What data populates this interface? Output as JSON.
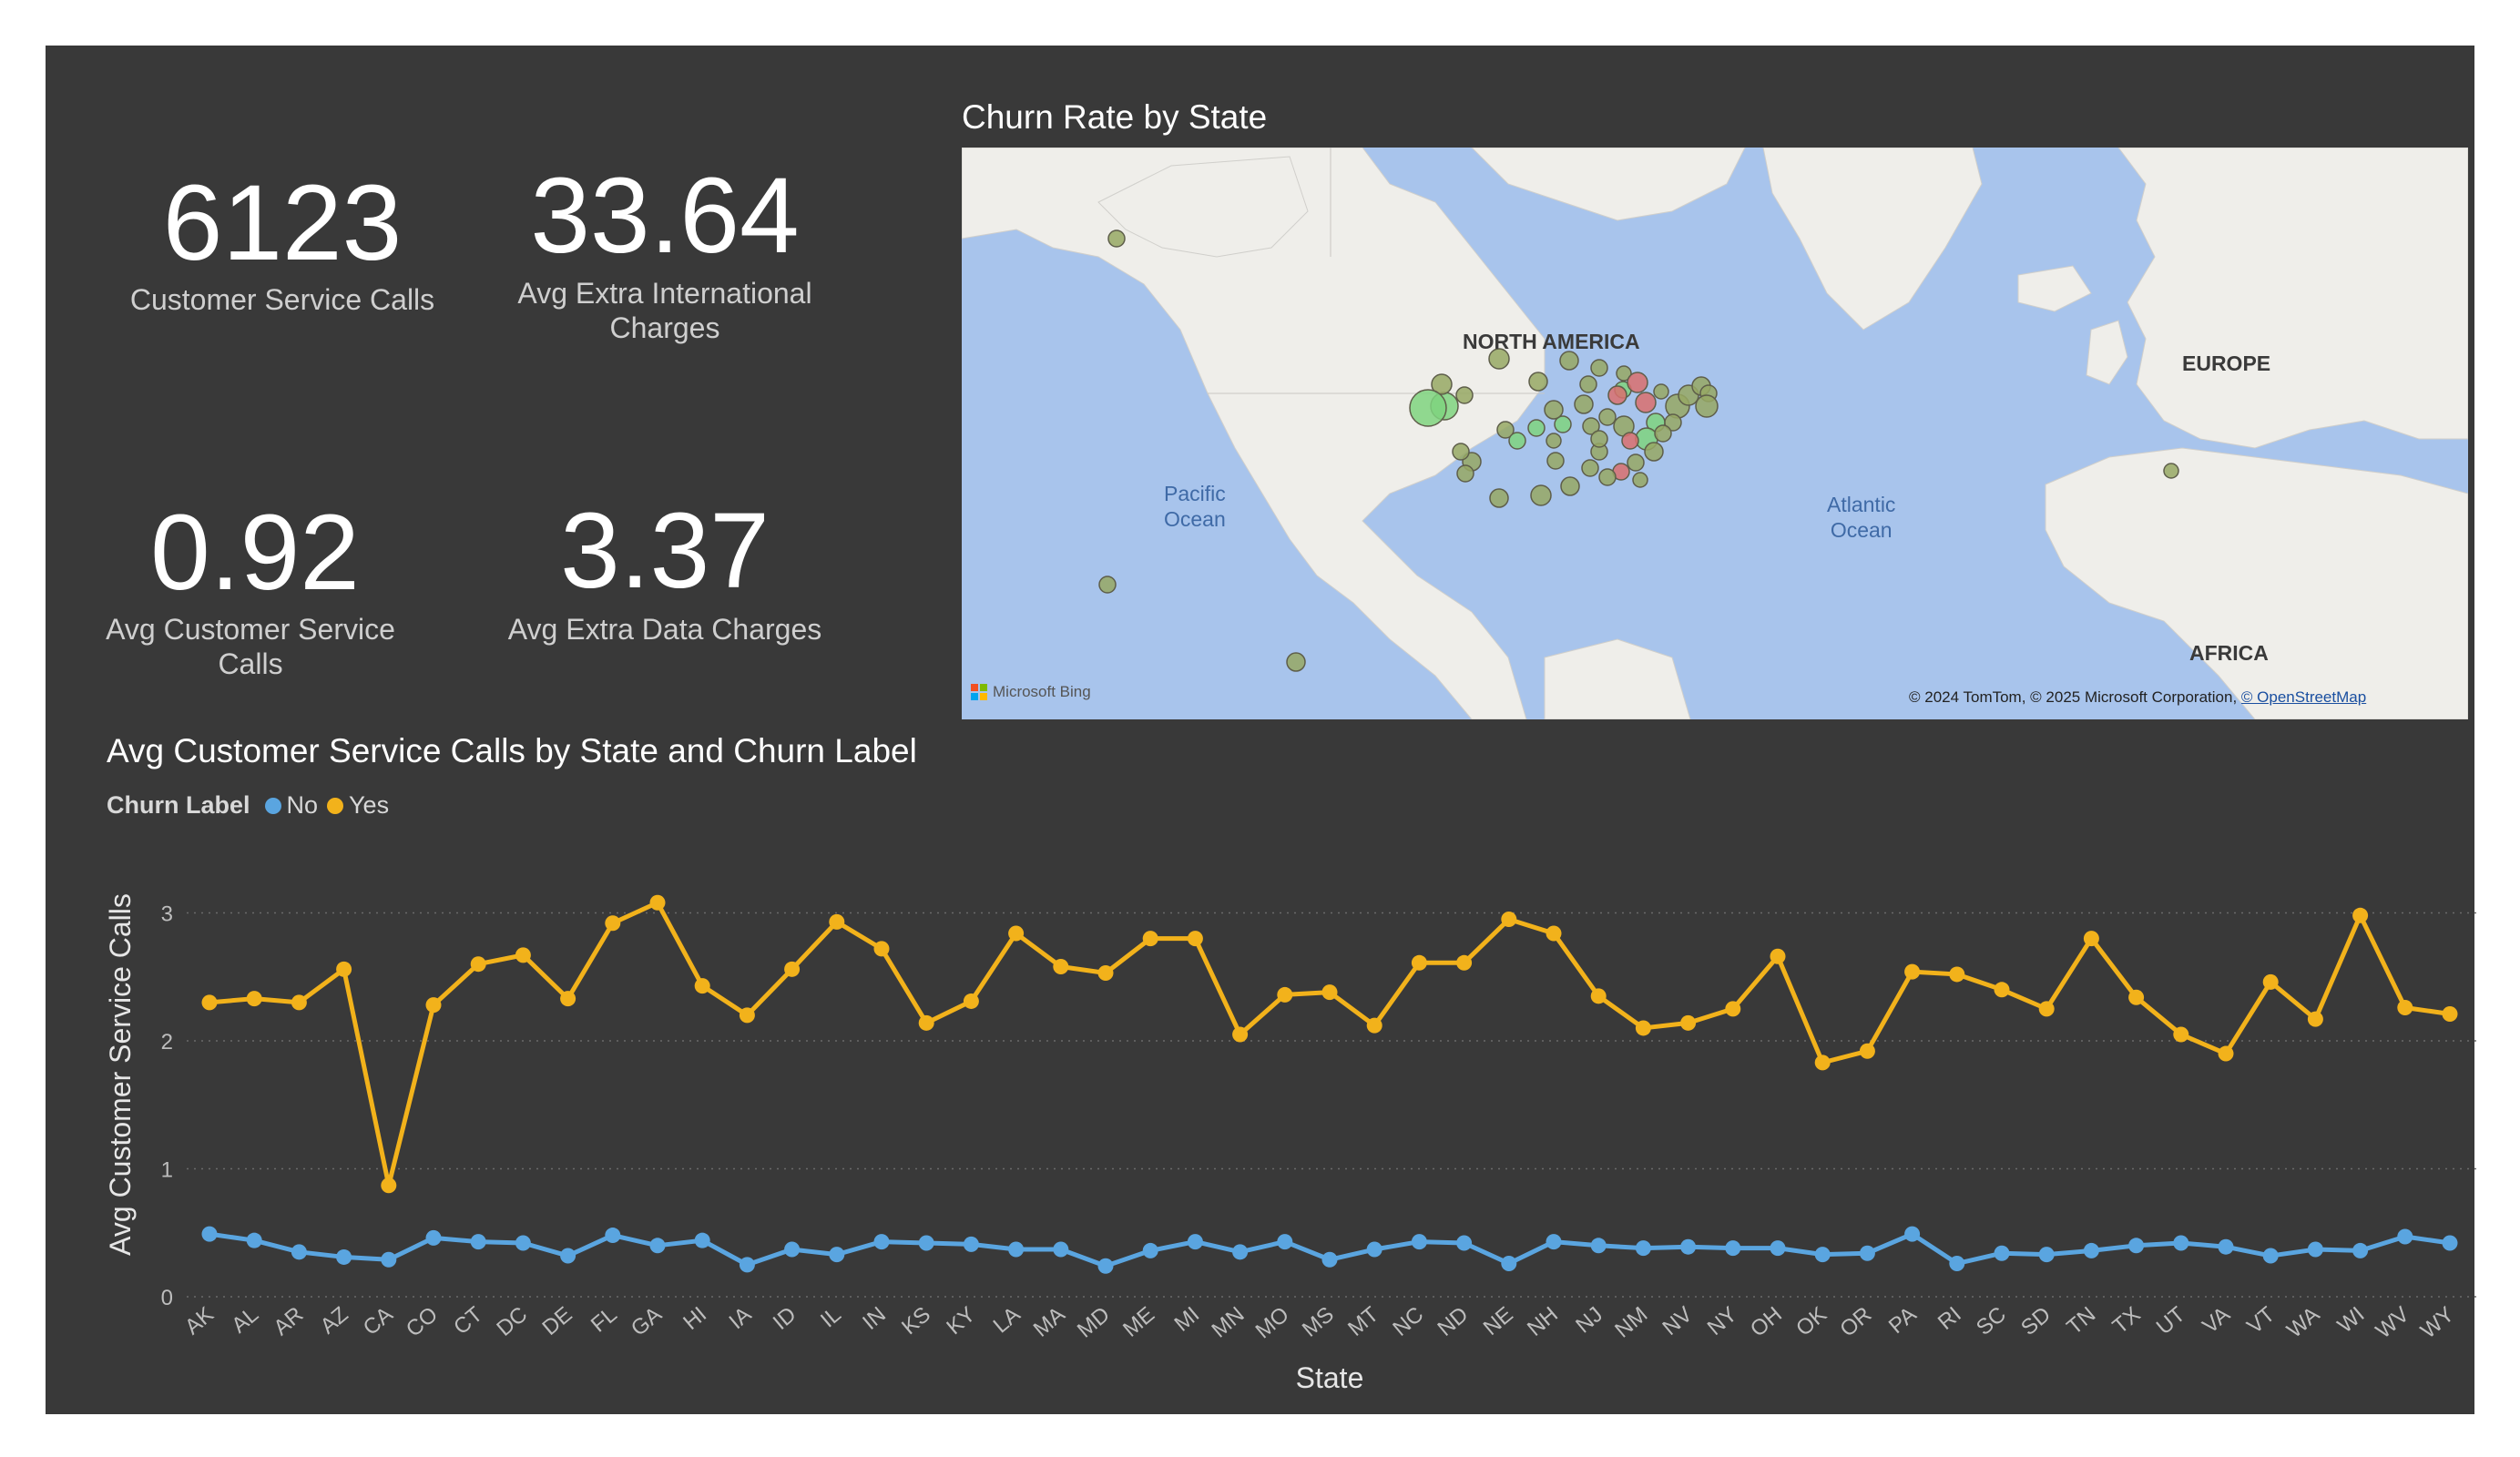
{
  "kpis": [
    {
      "value": "6123",
      "label": "Customer Service Calls"
    },
    {
      "value": "33.64",
      "label": "Avg Extra International Charges"
    },
    {
      "value": "0.92",
      "label": "Avg Customer Service Calls"
    },
    {
      "value": "3.37",
      "label": "Avg Extra Data Charges"
    }
  ],
  "map": {
    "title": "Churn Rate by State",
    "labels": {
      "north_america": "NORTH AMERICA",
      "europe": "EUROPE",
      "africa": "AFRICA",
      "pacific": "Pacific\nOcean",
      "atlantic": "Atlantic\nOcean"
    },
    "attribution": "© 2024 TomTom, © 2025 Microsoft Corporation,",
    "osm_link": "© OpenStreetMap",
    "brand": "Microsoft Bing",
    "colors": {
      "ocean": "#a8c4ec",
      "land": "#f0efec",
      "bubble_low": "#7fd47f",
      "bubble_mid": "#9aa86a",
      "bubble_high": "#d9706f"
    }
  },
  "chart": {
    "title": "Avg Customer Service Calls by State and Churn Label",
    "legend_title": "Churn Label"
  },
  "chart_data": {
    "type": "line",
    "title": "Avg Customer Service Calls by State and Churn Label",
    "xlabel": "State",
    "ylabel": "Avg Customer Service Calls",
    "ylim": [
      0,
      3
    ],
    "yticks": [
      0,
      1,
      2,
      3
    ],
    "grid": true,
    "legend": "top-left",
    "categories": [
      "AK",
      "AL",
      "AR",
      "AZ",
      "CA",
      "CO",
      "CT",
      "DC",
      "DE",
      "FL",
      "GA",
      "HI",
      "IA",
      "ID",
      "IL",
      "IN",
      "KS",
      "KY",
      "LA",
      "MA",
      "MD",
      "ME",
      "MI",
      "MN",
      "MO",
      "MS",
      "MT",
      "NC",
      "ND",
      "NE",
      "NH",
      "NJ",
      "NM",
      "NV",
      "NY",
      "OH",
      "OK",
      "OR",
      "PA",
      "RI",
      "SC",
      "SD",
      "TN",
      "TX",
      "UT",
      "VA",
      "VT",
      "WA",
      "WI",
      "WV",
      "WY"
    ],
    "series": [
      {
        "name": "No",
        "color": "#5aa5e0",
        "values": [
          0.49,
          0.44,
          0.35,
          0.31,
          0.29,
          0.46,
          0.43,
          0.42,
          0.32,
          0.48,
          0.4,
          0.44,
          0.25,
          0.37,
          0.33,
          0.43,
          0.42,
          0.41,
          0.37,
          0.37,
          0.24,
          0.36,
          0.43,
          0.35,
          0.43,
          0.29,
          0.37,
          0.43,
          0.42,
          0.26,
          0.43,
          0.4,
          0.38,
          0.39,
          0.38,
          0.38,
          0.33,
          0.34,
          0.49,
          0.26,
          0.34,
          0.33,
          0.36,
          0.4,
          0.42,
          0.39,
          0.32,
          0.37,
          0.36,
          0.47,
          0.42
        ]
      },
      {
        "name": "Yes",
        "color": "#f2b21b",
        "values": [
          2.3,
          2.33,
          2.3,
          2.56,
          0.87,
          2.28,
          2.6,
          2.67,
          2.33,
          2.92,
          3.08,
          2.43,
          2.2,
          2.56,
          2.93,
          2.72,
          2.14,
          2.31,
          2.84,
          2.58,
          2.53,
          2.8,
          2.8,
          2.05,
          2.36,
          2.38,
          2.12,
          2.61,
          2.61,
          2.95,
          2.84,
          2.35,
          2.1,
          2.14,
          2.25,
          2.66,
          1.83,
          1.92,
          2.54,
          2.52,
          2.4,
          2.25,
          2.8,
          2.34,
          2.05,
          1.9,
          2.46,
          2.17,
          2.98,
          2.26,
          2.21
        ]
      }
    ]
  }
}
